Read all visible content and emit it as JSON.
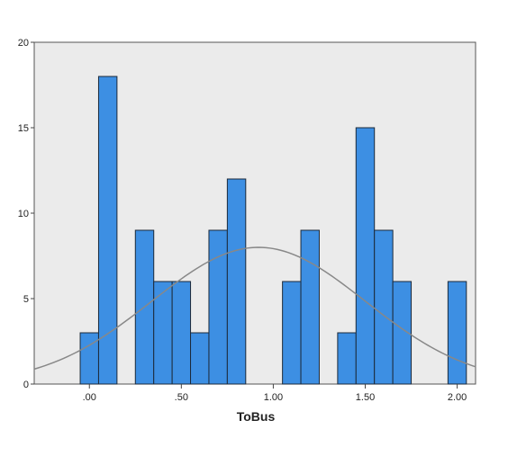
{
  "chart_data": {
    "type": "bar",
    "title": "",
    "xlabel": "ToBus",
    "ylabel": "",
    "bin_width": 0.1,
    "bins": [
      {
        "x0": -0.05,
        "x1": 0.05,
        "count": 3
      },
      {
        "x0": 0.05,
        "x1": 0.15,
        "count": 18
      },
      {
        "x0": 0.25,
        "x1": 0.35,
        "count": 9
      },
      {
        "x0": 0.35,
        "x1": 0.45,
        "count": 6
      },
      {
        "x0": 0.45,
        "x1": 0.55,
        "count": 6
      },
      {
        "x0": 0.55,
        "x1": 0.65,
        "count": 3
      },
      {
        "x0": 0.65,
        "x1": 0.75,
        "count": 9
      },
      {
        "x0": 0.75,
        "x1": 0.85,
        "count": 12
      },
      {
        "x0": 1.05,
        "x1": 1.15,
        "count": 6
      },
      {
        "x0": 1.15,
        "x1": 1.25,
        "count": 9
      },
      {
        "x0": 1.35,
        "x1": 1.45,
        "count": 3
      },
      {
        "x0": 1.45,
        "x1": 1.55,
        "count": 15
      },
      {
        "x0": 1.55,
        "x1": 1.65,
        "count": 9
      },
      {
        "x0": 1.65,
        "x1": 1.75,
        "count": 6
      },
      {
        "x0": 1.95,
        "x1": 2.05,
        "count": 6
      }
    ],
    "normal_curve": {
      "mean": 0.92,
      "sd": 0.58,
      "peak": 8
    },
    "xlim": [
      -0.3,
      2.1
    ],
    "ylim": [
      0,
      20
    ],
    "x_ticks": [
      {
        "value": 0,
        "label": ".00"
      },
      {
        "value": 0.5,
        "label": ".50"
      },
      {
        "value": 1.0,
        "label": "1.00"
      },
      {
        "value": 1.5,
        "label": "1.50"
      },
      {
        "value": 2.0,
        "label": "2.00"
      }
    ],
    "y_ticks": [
      {
        "value": 0,
        "label": "0"
      },
      {
        "value": 5,
        "label": "5"
      },
      {
        "value": 10,
        "label": "10"
      },
      {
        "value": 15,
        "label": "15"
      },
      {
        "value": 20,
        "label": "20"
      }
    ],
    "grid": false,
    "legend": "none",
    "colors": {
      "bar_fill": "#3d8fe3",
      "bar_stroke": "#1c2a3a",
      "plot_background": "#ebebeb",
      "curve": "#888888",
      "axis": "#444444",
      "text": "#222222"
    }
  }
}
